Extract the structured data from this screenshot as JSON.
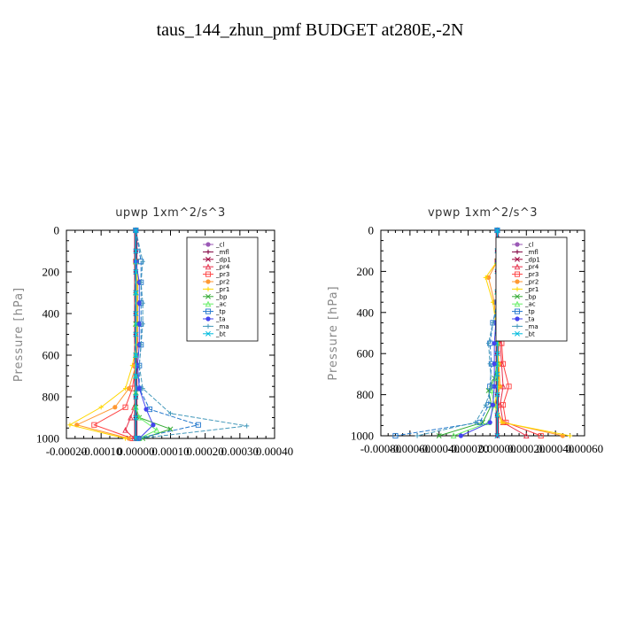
{
  "figure_title": "taus_144_zhun_pmf  BUDGET at280E,-2N",
  "chart_data": [
    {
      "type": "line",
      "title": "upwp   1xm^2/s^3",
      "ylabel": "Pressure [hPa]",
      "xlabel": "",
      "xlim": [
        -0.0002,
        0.0004
      ],
      "ylim": [
        1000,
        0
      ],
      "xtick_labels": [
        "-0.00020",
        "-0.00010",
        "0.00000",
        "0.00010",
        "0.00020",
        "0.00030",
        "0.00040"
      ],
      "xticks": [
        -0.0002,
        -0.0001,
        0,
        0.0001,
        0.0002,
        0.0003,
        0.0004
      ],
      "ytick_labels": [
        "0",
        "200",
        "400",
        "600",
        "800",
        "1000"
      ],
      "yticks": [
        0,
        200,
        400,
        600,
        800,
        1000
      ],
      "legend_position": "top-right",
      "series": [
        {
          "name": "_cl",
          "color": "#9b59b6",
          "x": [
            0,
            0,
            0,
            0,
            0,
            0,
            0,
            0,
            0,
            0,
            0
          ],
          "y": [
            0,
            100,
            200,
            300,
            400,
            500,
            600,
            700,
            800,
            900,
            1000
          ]
        },
        {
          "name": "_mfl",
          "color": "#800040",
          "x": [
            0,
            0,
            0,
            0,
            0,
            0,
            0,
            0,
            0,
            0,
            0
          ],
          "y": [
            0,
            100,
            200,
            300,
            400,
            500,
            600,
            700,
            800,
            900,
            1000
          ]
        },
        {
          "name": "_dp1",
          "color": "#a0003c",
          "x": [
            0,
            0,
            0,
            0,
            0,
            0,
            0,
            0,
            0,
            0,
            0
          ],
          "y": [
            0,
            100,
            200,
            300,
            400,
            500,
            600,
            700,
            800,
            900,
            1000
          ]
        },
        {
          "name": "_pr4",
          "color": "#e8304a",
          "x": [
            0,
            0,
            0,
            0,
            0,
            0,
            0,
            -5e-06,
            -1.5e-05,
            -3e-05,
            -5e-06
          ],
          "y": [
            0,
            150,
            300,
            450,
            600,
            700,
            780,
            850,
            900,
            960,
            1000
          ]
        },
        {
          "name": "_pr3",
          "color": "#ff4040",
          "x": [
            0,
            0,
            5e-06,
            5e-06,
            5e-06,
            5e-06,
            0,
            -1e-05,
            -3e-05,
            -0.00012,
            -1e-05
          ],
          "y": [
            0,
            150,
            250,
            350,
            450,
            550,
            650,
            760,
            850,
            935,
            1000
          ]
        },
        {
          "name": "_pr2",
          "color": "#ff9933",
          "x": [
            0,
            0,
            3e-06,
            3e-06,
            3e-06,
            3e-06,
            0,
            -2e-05,
            -6e-05,
            -0.00017,
            -2e-05
          ],
          "y": [
            0,
            150,
            250,
            350,
            450,
            550,
            650,
            760,
            850,
            935,
            1000
          ]
        },
        {
          "name": "_pr1",
          "color": "#ffd700",
          "x": [
            0,
            0,
            5e-06,
            5e-06,
            5e-06,
            2e-06,
            -1e-05,
            -3e-05,
            -0.0001,
            -0.00019,
            -3e-05
          ],
          "y": [
            0,
            150,
            250,
            350,
            450,
            550,
            650,
            760,
            850,
            935,
            1000
          ]
        },
        {
          "name": "_bp",
          "color": "#33aa33",
          "x": [
            0,
            0,
            0,
            0,
            0,
            0,
            0,
            0,
            1e-05,
            0.0001,
            2e-05
          ],
          "y": [
            0,
            150,
            300,
            450,
            600,
            700,
            780,
            850,
            900,
            955,
            1000
          ]
        },
        {
          "name": "_ac",
          "color": "#66ee66",
          "x": [
            0,
            0,
            0,
            0,
            0,
            0,
            0,
            0,
            1e-05,
            6e-05,
            1e-05
          ],
          "y": [
            0,
            150,
            300,
            450,
            600,
            700,
            780,
            850,
            900,
            960,
            1000
          ]
        },
        {
          "name": "_tp",
          "color": "#2277cc",
          "x": [
            0,
            1.5e-05,
            1.5e-05,
            1.5e-05,
            1.5e-05,
            1.5e-05,
            1e-05,
            1e-05,
            4e-05,
            0.00018,
            5e-06
          ],
          "y": [
            0,
            150,
            250,
            350,
            450,
            550,
            650,
            760,
            860,
            935,
            1000
          ]
        },
        {
          "name": "_ta",
          "color": "#4444ee",
          "x": [
            0,
            0,
            1e-05,
            1e-05,
            1e-05,
            1e-05,
            5e-06,
            1e-05,
            3e-05,
            5e-05,
            1e-05
          ],
          "y": [
            0,
            150,
            250,
            350,
            450,
            550,
            650,
            760,
            860,
            935,
            1000
          ]
        },
        {
          "name": "_ma",
          "color": "#4499bb",
          "x": [
            0,
            2e-05,
            1.5e-05,
            2e-05,
            2e-05,
            1.5e-05,
            1e-05,
            2e-05,
            0.0001,
            0.00032,
            1e-05
          ],
          "y": [
            0,
            150,
            250,
            350,
            450,
            550,
            650,
            760,
            880,
            940,
            1000
          ]
        },
        {
          "name": "_bt",
          "color": "#00bbdd",
          "x": [
            0,
            0,
            0,
            0,
            0,
            0,
            0,
            0,
            0,
            0,
            0
          ],
          "y": [
            0,
            100,
            200,
            300,
            400,
            500,
            600,
            700,
            800,
            900,
            1000
          ]
        }
      ]
    },
    {
      "type": "line",
      "title": "vpwp   1xm^2/s^3",
      "ylabel": "Pressure [hPa]",
      "xlabel": "",
      "xlim": [
        -0.0008,
        0.0006
      ],
      "ylim": [
        1000,
        0
      ],
      "xtick_labels": [
        "-0.00080",
        "-0.00060",
        "-0.00040",
        "-0.00020",
        "0.00000",
        "0.00020",
        "0.00040",
        "0.00060"
      ],
      "xticks": [
        -0.0008,
        -0.0006,
        -0.0004,
        -0.0002,
        0,
        0.0002,
        0.0004,
        0.0006
      ],
      "ytick_labels": [
        "0",
        "200",
        "400",
        "600",
        "800",
        "1000"
      ],
      "yticks": [
        0,
        200,
        400,
        600,
        800,
        1000
      ],
      "legend_position": "top-right",
      "series": [
        {
          "name": "_cl",
          "color": "#9b59b6",
          "x": [
            0,
            0,
            0,
            0,
            0,
            0,
            0,
            0,
            0,
            0,
            0
          ],
          "y": [
            0,
            100,
            200,
            300,
            400,
            500,
            600,
            700,
            800,
            900,
            1000
          ]
        },
        {
          "name": "_mfl",
          "color": "#800040",
          "x": [
            0,
            0,
            0,
            0,
            0,
            0,
            0,
            0,
            0,
            0,
            0
          ],
          "y": [
            0,
            100,
            200,
            300,
            400,
            500,
            600,
            700,
            800,
            900,
            1000
          ]
        },
        {
          "name": "_dp1",
          "color": "#a0003c",
          "x": [
            0,
            0,
            0,
            0,
            0,
            0,
            0,
            0,
            0,
            0,
            0
          ],
          "y": [
            0,
            100,
            200,
            300,
            400,
            500,
            600,
            700,
            800,
            900,
            1000
          ]
        },
        {
          "name": "_pr4",
          "color": "#e8304a",
          "x": [
            0,
            0,
            2e-05,
            2e-05,
            0,
            2e-05,
            3e-05,
            4e-05,
            2e-05,
            4e-05,
            0.0002
          ],
          "y": [
            0,
            150,
            250,
            350,
            450,
            550,
            650,
            760,
            850,
            935,
            1000
          ]
        },
        {
          "name": "_pr3",
          "color": "#ff4040",
          "x": [
            0,
            0,
            3e-05,
            3e-05,
            2e-05,
            3e-05,
            4e-05,
            8e-05,
            4e-05,
            6e-05,
            0.0003
          ],
          "y": [
            0,
            150,
            250,
            350,
            450,
            550,
            650,
            760,
            850,
            935,
            1000
          ]
        },
        {
          "name": "_pr2",
          "color": "#ff9933",
          "x": [
            0,
            0,
            -6e-05,
            -2e-05,
            -1e-05,
            0,
            1e-05,
            2e-05,
            -2e-05,
            4e-05,
            0.00045
          ],
          "y": [
            0,
            150,
            230,
            350,
            450,
            550,
            650,
            760,
            850,
            935,
            1000
          ]
        },
        {
          "name": "_pr1",
          "color": "#ffd700",
          "x": [
            0,
            0,
            -8e-05,
            -3e-05,
            -1e-05,
            0,
            1e-05,
            1e-05,
            -2e-05,
            3e-05,
            0.0005
          ],
          "y": [
            0,
            150,
            230,
            350,
            450,
            550,
            650,
            760,
            850,
            935,
            1000
          ]
        },
        {
          "name": "_bp",
          "color": "#33aa33",
          "x": [
            0,
            0,
            0,
            0,
            0,
            0,
            -2e-05,
            -6e-05,
            -4e-05,
            -0.0001,
            -0.0004
          ],
          "y": [
            0,
            150,
            300,
            450,
            550,
            650,
            720,
            780,
            850,
            935,
            1000
          ]
        },
        {
          "name": "_ac",
          "color": "#66ee66",
          "x": [
            0,
            0,
            0,
            0,
            0,
            0,
            -1e-05,
            -4e-05,
            -2e-05,
            -6e-05,
            -0.0003
          ],
          "y": [
            0,
            150,
            300,
            450,
            550,
            650,
            720,
            780,
            850,
            935,
            1000
          ]
        },
        {
          "name": "_tp",
          "color": "#2277cc",
          "x": [
            0,
            5e-05,
            6e-05,
            0,
            -3e-05,
            -5e-05,
            -4e-05,
            -5e-05,
            -6e-05,
            -0.00012,
            -0.0007
          ],
          "y": [
            0,
            150,
            230,
            350,
            450,
            550,
            650,
            760,
            850,
            935,
            1000
          ]
        },
        {
          "name": "_ta",
          "color": "#4444ee",
          "x": [
            0,
            0,
            2e-05,
            0,
            -1e-05,
            -2e-05,
            -2e-05,
            -2e-05,
            -3e-05,
            -5e-05,
            -0.00025
          ],
          "y": [
            0,
            150,
            230,
            350,
            450,
            550,
            650,
            760,
            850,
            935,
            1000
          ]
        },
        {
          "name": "_ma",
          "color": "#4499bb",
          "x": [
            0,
            6e-05,
            8e-05,
            2e-05,
            -3e-05,
            -6e-05,
            -5e-05,
            -4e-05,
            -8e-05,
            -0.00015,
            -0.00055
          ],
          "y": [
            0,
            150,
            230,
            350,
            450,
            550,
            650,
            760,
            850,
            935,
            1000
          ]
        },
        {
          "name": "_bt",
          "color": "#00bbdd",
          "x": [
            0,
            0,
            0,
            0,
            0,
            0,
            0,
            0,
            0,
            0,
            0
          ],
          "y": [
            0,
            100,
            200,
            300,
            400,
            500,
            600,
            700,
            800,
            900,
            1000
          ]
        }
      ]
    }
  ]
}
